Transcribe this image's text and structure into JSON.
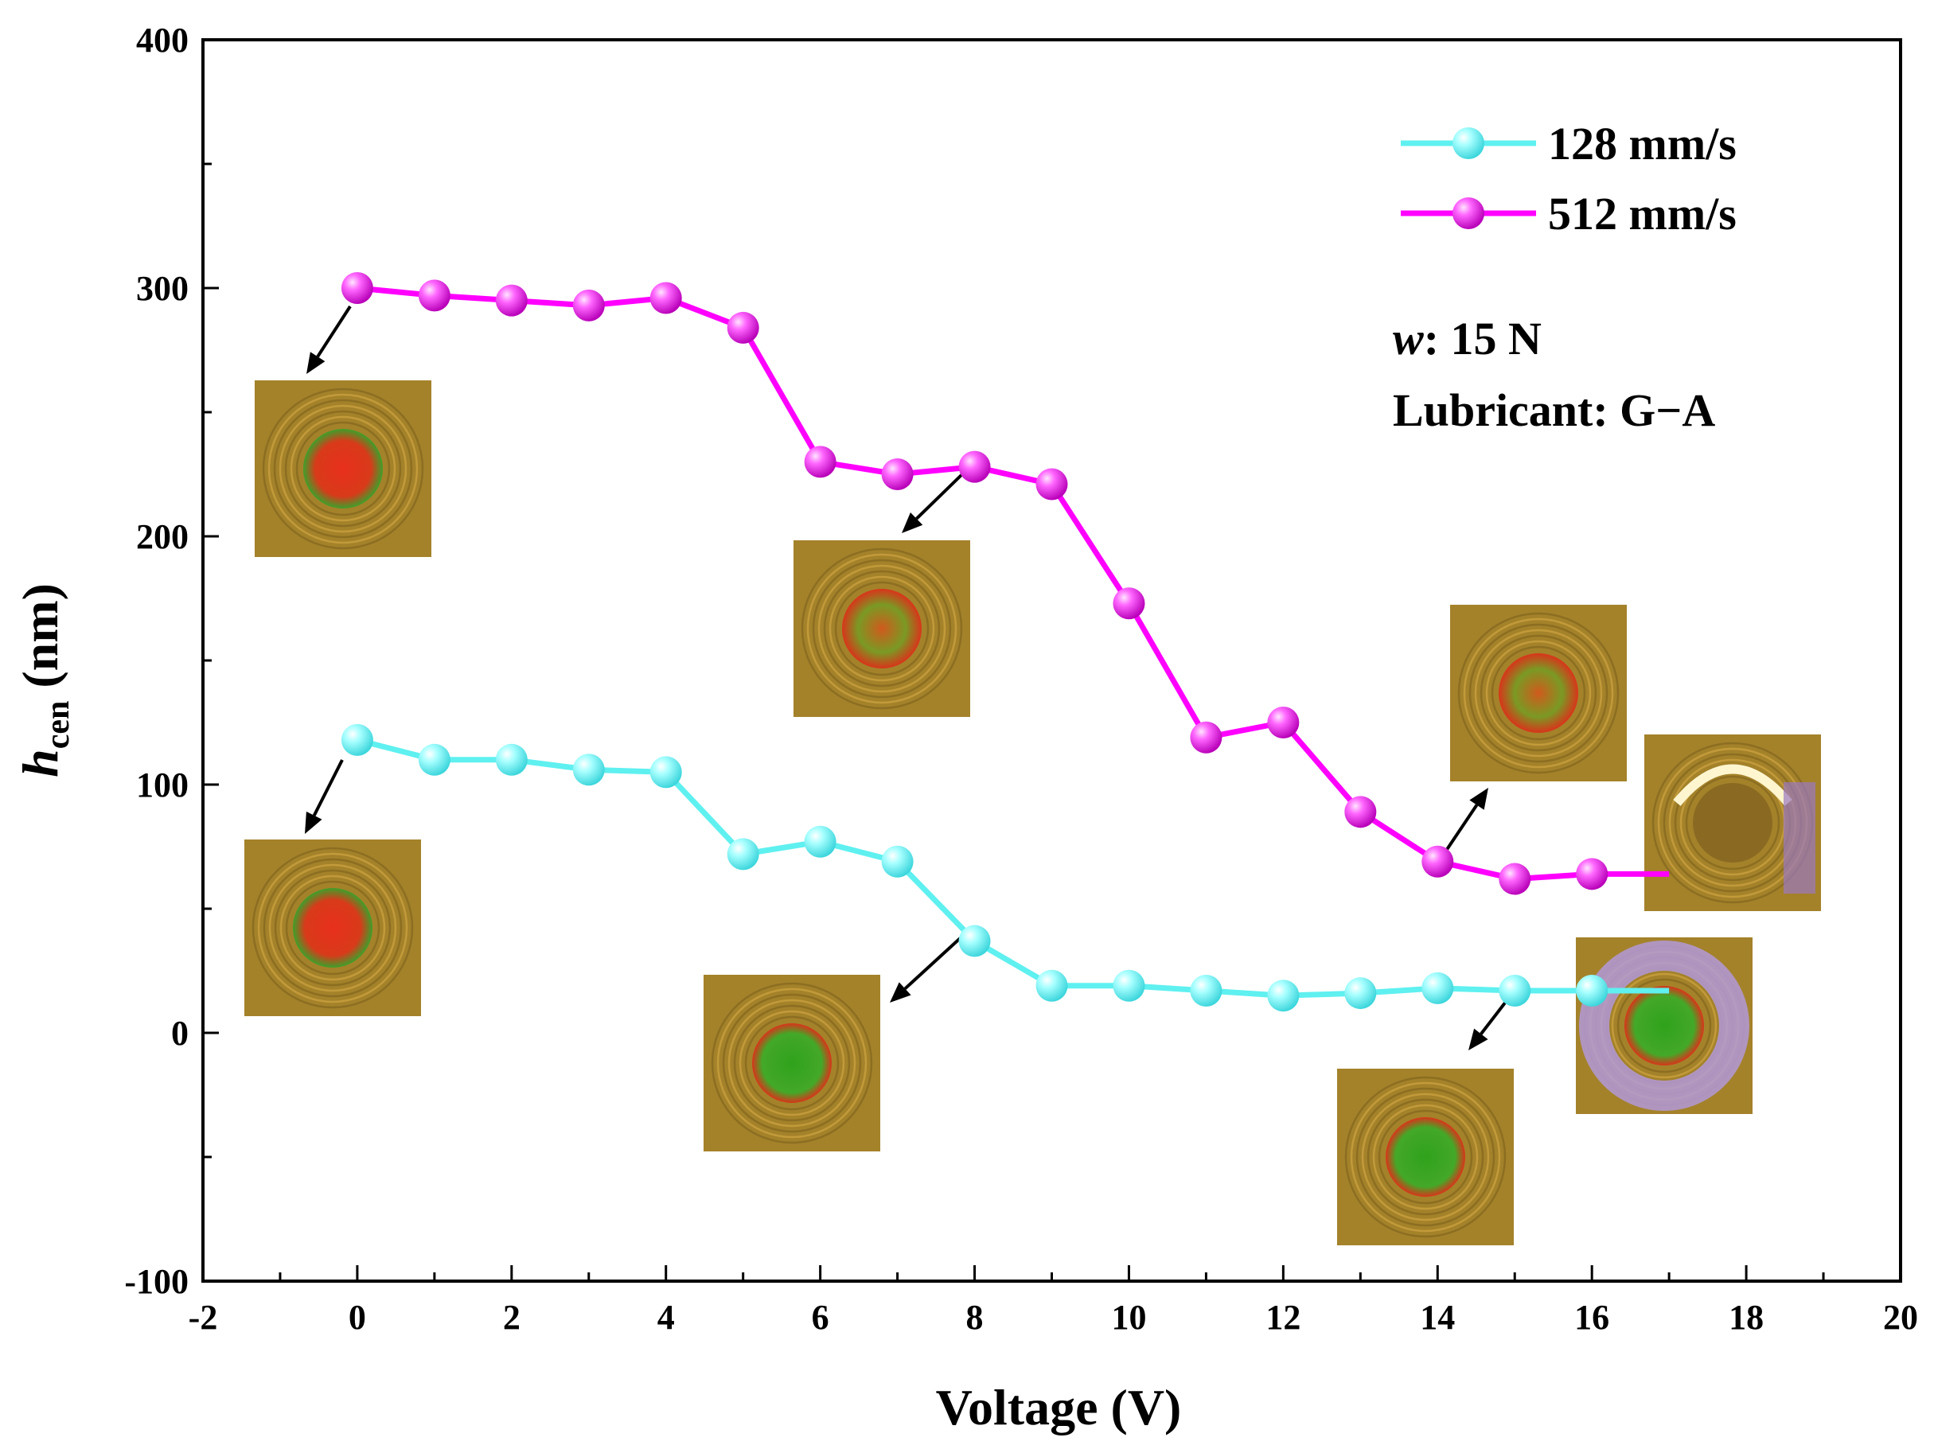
{
  "chart_data": {
    "type": "line",
    "xlabel": "Voltage (V)",
    "ylabel_main": "h",
    "ylabel_sub": "cen",
    "ylabel_unit": "(nm)",
    "xlim": [
      -2,
      20
    ],
    "ylim": [
      -100,
      400
    ],
    "xticks": [
      -2,
      0,
      2,
      4,
      6,
      8,
      10,
      12,
      14,
      16,
      18,
      20
    ],
    "yticks": [
      -100,
      0,
      100,
      200,
      300,
      400
    ],
    "x": [
      0,
      1,
      2,
      3,
      4,
      5,
      6,
      7,
      8,
      9,
      10,
      11,
      12,
      13,
      14,
      15,
      16,
      17
    ],
    "series": [
      {
        "name": "128 mm/s",
        "color": "#5ff0f0",
        "values": [
          118,
          110,
          110,
          106,
          105,
          72,
          77,
          69,
          37,
          19,
          19,
          17,
          15,
          16,
          18,
          17,
          17,
          17
        ]
      },
      {
        "name": "512 mm/s",
        "color": "#ff00ff",
        "values": [
          300,
          297,
          295,
          293,
          296,
          284,
          230,
          225,
          228,
          221,
          173,
          119,
          125,
          89,
          69,
          62,
          64,
          64
        ]
      }
    ],
    "legend_position": "top-right",
    "annotation": {
      "weight_label": "w",
      "weight_value": ": 15 N",
      "lubricant": "Lubricant: G−A"
    }
  }
}
